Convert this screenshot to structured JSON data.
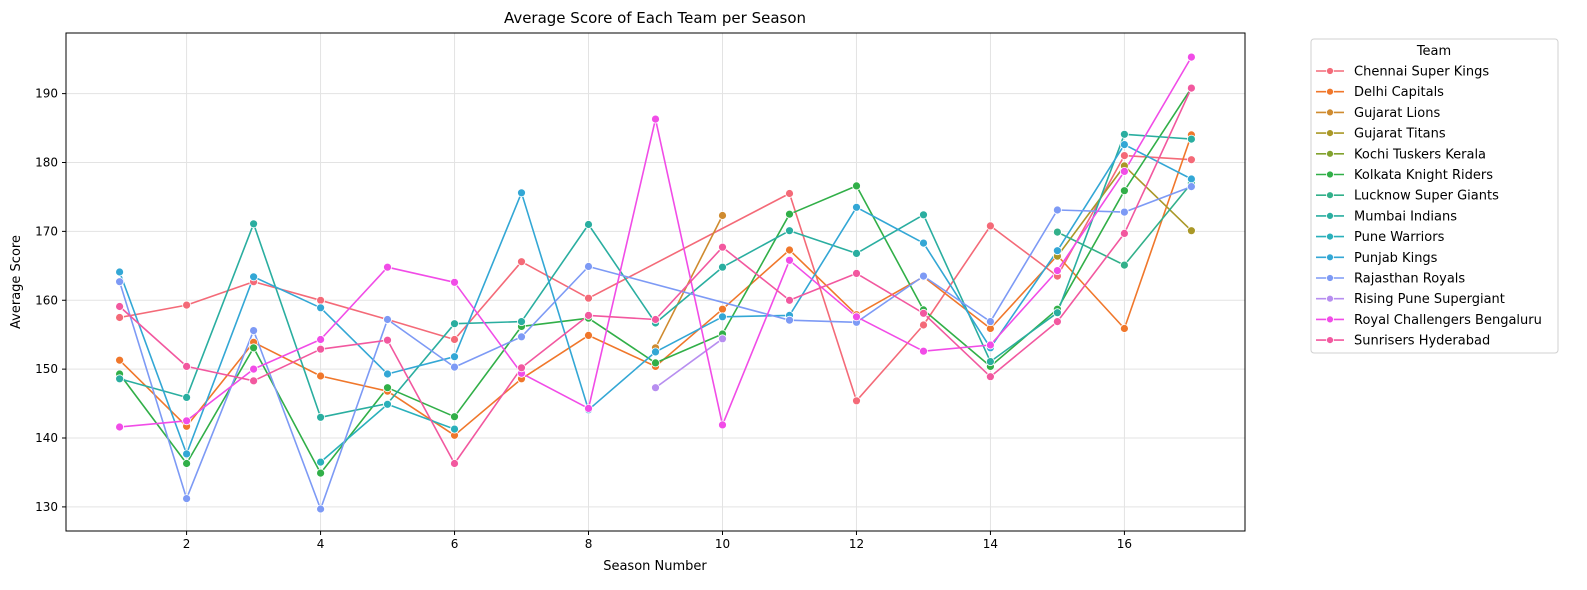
{
  "chart_data": {
    "type": "line",
    "title": "Average Score of Each Team per Season",
    "xlabel": "Season Number",
    "ylabel": "Average Score",
    "xlim": [
      0.2,
      17.8
    ],
    "ylim": [
      126.5,
      198.8
    ],
    "xticks": [
      2,
      4,
      6,
      8,
      10,
      12,
      14,
      16
    ],
    "yticks": [
      130,
      140,
      150,
      160,
      170,
      180,
      190
    ],
    "grid": true,
    "legend": {
      "title": "Team",
      "placement": "outside-right"
    },
    "series": [
      {
        "name": "Chennai Super Kings",
        "color": "#f46a78",
        "points": [
          [
            1,
            157.5
          ],
          [
            2,
            159.3
          ],
          [
            3,
            162.7
          ],
          [
            4,
            160.0
          ],
          [
            5,
            157.2
          ],
          [
            6,
            154.3
          ],
          [
            7,
            165.6
          ],
          [
            8,
            160.3
          ],
          [
            11,
            175.5
          ],
          [
            12,
            145.4
          ],
          [
            13,
            156.4
          ],
          [
            14,
            170.8
          ],
          [
            15,
            163.5
          ],
          [
            16,
            181.0
          ],
          [
            17,
            180.4
          ]
        ]
      },
      {
        "name": "Delhi Capitals",
        "color": "#f0772b",
        "points": [
          [
            1,
            151.3
          ],
          [
            2,
            141.7
          ],
          [
            3,
            153.9
          ],
          [
            4,
            149.0
          ],
          [
            5,
            146.8
          ],
          [
            6,
            140.4
          ],
          [
            7,
            148.6
          ],
          [
            8,
            154.9
          ],
          [
            9,
            150.4
          ],
          [
            10,
            158.7
          ],
          [
            11,
            167.3
          ],
          [
            12,
            157.9
          ],
          [
            13,
            163.4
          ],
          [
            14,
            155.9
          ],
          [
            15,
            166.5
          ],
          [
            16,
            155.9
          ],
          [
            17,
            184.0
          ]
        ]
      },
      {
        "name": "Gujarat Lions",
        "color": "#cf8b2f",
        "points": [
          [
            9,
            153.1
          ],
          [
            10,
            172.3
          ]
        ]
      },
      {
        "name": "Gujarat Titans",
        "color": "#aa9827",
        "points": [
          [
            15,
            166.4
          ],
          [
            16,
            179.5
          ],
          [
            17,
            170.1
          ]
        ]
      },
      {
        "name": "Kochi Tuskers Kerala",
        "color": "#82a22e",
        "points": []
      },
      {
        "name": "Kolkata Knight Riders",
        "color": "#31af48",
        "points": [
          [
            1,
            149.3
          ],
          [
            2,
            136.3
          ],
          [
            3,
            153.1
          ],
          [
            4,
            134.9
          ],
          [
            5,
            147.3
          ],
          [
            6,
            143.1
          ],
          [
            7,
            156.2
          ],
          [
            8,
            157.4
          ],
          [
            9,
            150.9
          ],
          [
            10,
            155.1
          ],
          [
            11,
            172.5
          ],
          [
            12,
            176.6
          ],
          [
            13,
            158.6
          ],
          [
            14,
            150.4
          ],
          [
            15,
            158.7
          ],
          [
            16,
            175.9
          ],
          [
            17,
            190.8
          ]
        ]
      },
      {
        "name": "Lucknow Super Giants",
        "color": "#32b08a",
        "points": [
          [
            15,
            169.9
          ],
          [
            16,
            165.1
          ],
          [
            17,
            177.0
          ]
        ]
      },
      {
        "name": "Mumbai Indians",
        "color": "#2aaea0",
        "points": [
          [
            1,
            148.6
          ],
          [
            2,
            145.9
          ],
          [
            3,
            171.1
          ],
          [
            4,
            143.0
          ],
          [
            5,
            145.0
          ],
          [
            6,
            156.6
          ],
          [
            7,
            156.9
          ],
          [
            8,
            171.0
          ],
          [
            9,
            156.7
          ],
          [
            10,
            164.8
          ],
          [
            11,
            170.1
          ],
          [
            12,
            166.8
          ],
          [
            13,
            172.4
          ],
          [
            14,
            151.1
          ],
          [
            15,
            158.2
          ],
          [
            16,
            184.1
          ],
          [
            17,
            183.4
          ]
        ]
      },
      {
        "name": "Pune Warriors",
        "color": "#2ab0bb",
        "points": [
          [
            4,
            136.5
          ],
          [
            5,
            144.9
          ],
          [
            6,
            141.3
          ]
        ]
      },
      {
        "name": "Punjab Kings",
        "color": "#33a7d5",
        "points": [
          [
            1,
            164.1
          ],
          [
            2,
            137.7
          ],
          [
            3,
            163.4
          ],
          [
            4,
            158.9
          ],
          [
            5,
            149.3
          ],
          [
            6,
            151.8
          ],
          [
            7,
            175.6
          ],
          [
            8,
            144.1
          ],
          [
            9,
            152.5
          ],
          [
            10,
            157.6
          ],
          [
            11,
            157.8
          ],
          [
            12,
            173.5
          ],
          [
            13,
            168.3
          ],
          [
            14,
            153.1
          ],
          [
            15,
            167.2
          ],
          [
            16,
            182.6
          ],
          [
            17,
            177.6
          ]
        ]
      },
      {
        "name": "Rajasthan Royals",
        "color": "#7d9af5",
        "points": [
          [
            1,
            162.7
          ],
          [
            2,
            131.2
          ],
          [
            3,
            155.6
          ],
          [
            4,
            129.7
          ],
          [
            5,
            157.2
          ],
          [
            6,
            150.3
          ],
          [
            7,
            154.7
          ],
          [
            8,
            164.9
          ],
          [
            11,
            157.1
          ],
          [
            12,
            156.8
          ],
          [
            13,
            163.5
          ],
          [
            14,
            156.9
          ],
          [
            15,
            173.1
          ],
          [
            16,
            172.8
          ],
          [
            17,
            176.5
          ]
        ]
      },
      {
        "name": "Rising Pune Supergiant",
        "color": "#b78ef0",
        "points": [
          [
            9,
            147.3
          ],
          [
            10,
            154.4
          ]
        ]
      },
      {
        "name": "Royal Challengers Bengaluru",
        "color": "#f14ce7",
        "points": [
          [
            1,
            141.6
          ],
          [
            2,
            142.5
          ],
          [
            3,
            150.0
          ],
          [
            4,
            154.3
          ],
          [
            5,
            164.8
          ],
          [
            6,
            162.6
          ],
          [
            7,
            149.4
          ],
          [
            8,
            144.3
          ],
          [
            9,
            186.3
          ],
          [
            10,
            141.9
          ],
          [
            11,
            165.8
          ],
          [
            12,
            157.6
          ],
          [
            13,
            152.6
          ],
          [
            14,
            153.5
          ],
          [
            15,
            164.3
          ],
          [
            16,
            178.7
          ],
          [
            17,
            195.3
          ]
        ]
      },
      {
        "name": "Sunrisers Hyderabad",
        "color": "#f2589f",
        "points": [
          [
            1,
            159.1
          ],
          [
            2,
            150.4
          ],
          [
            3,
            148.3
          ],
          [
            4,
            152.9
          ],
          [
            5,
            154.2
          ],
          [
            6,
            136.3
          ],
          [
            7,
            150.2
          ],
          [
            8,
            157.8
          ],
          [
            9,
            157.2
          ],
          [
            10,
            167.7
          ],
          [
            11,
            160.0
          ],
          [
            12,
            163.9
          ],
          [
            13,
            158.1
          ],
          [
            14,
            148.9
          ],
          [
            15,
            156.9
          ],
          [
            16,
            169.7
          ],
          [
            17,
            190.8
          ]
        ]
      }
    ]
  }
}
